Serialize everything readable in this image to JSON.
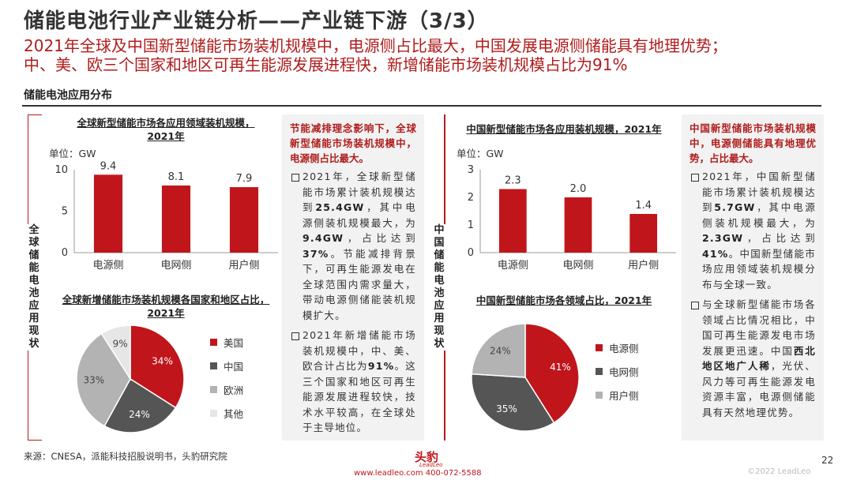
{
  "header": {
    "title": "储能电池行业产业链分析——产业链下游（3/3）",
    "subtitle_line1": "2021年全球及中国新型储能市场装机规模中，电源侧占比最大，中国发展电源侧储能具有地理优势；",
    "subtitle_line2": "中、美、欧三个国家和地区可再生能源发展进程快，新增储能市场装机规模占比为91%"
  },
  "section_title": "储能电池应用分布",
  "global": {
    "side_label": "全球储能电池应用现状",
    "bar_title_line1": "全球新型储能市场各应用领域装机规模，",
    "bar_title_line2": "2021年",
    "pie_title_line1": "全球新增储能市场装机规模各国家和地区占比，",
    "pie_title_line2": "2021年",
    "panel_head": "节能减排理念影响下，全球新型储能市场装机规模中，电源侧占比最大。",
    "bullet1_a": "2021年，全球新型储能市场累计装机规模达到",
    "bullet1_b": "25.4GW",
    "bullet1_c": "，其中电源侧装机规模最大，为",
    "bullet1_d": "9.4GW",
    "bullet1_e": "，占比达到",
    "bullet1_f": "37%",
    "bullet1_g": "。节能减排背景下，可再生能源发电在全球范围内需求量大，带动电源侧储能装机规模扩大。",
    "bullet2_a": "2021年新增储能市场装机规模中，中、美、欧合计占比为",
    "bullet2_b": "91%",
    "bullet2_c": "。这三个国家和地区可再生能源发展进程较快，技术水平较高，在全球处于主导地位。"
  },
  "china": {
    "side_label": "中国储能电池应用现状",
    "bar_title": "中国新型储能市场各应用装机规模，2021年",
    "pie_title": "中国新型储能市场各领域占比，2021年",
    "panel_head": "中国新型储能市场装机规模中，电源侧储能具有地理优势，占比最大。",
    "bullet1_a": "2021年，中国新型储能市场累计装机规模达到",
    "bullet1_b": "5.7GW",
    "bullet1_c": "，其中电源侧装机规模最大，为",
    "bullet1_d": "2.3GW",
    "bullet1_e": "，占比达到",
    "bullet1_f": "41%",
    "bullet1_g": "。中国新型储能市场应用领域装机规模分布与全球一致。",
    "bullet2_a": "与全球新型储能市场各领域占比情况相比，中国可再生能源发电市场发展更迅速。中国",
    "bullet2_b": "西北地区地广人稀",
    "bullet2_c": "，光伏、风力等可再生能源发电资源丰富，电源侧储能具有天然地理优势。"
  },
  "chart_data": [
    {
      "id": "global-bar",
      "type": "bar",
      "title": "全球新型储能市场各应用领域装机规模，2021年",
      "unit_label": "单位：GW",
      "categories": [
        "电源侧",
        "电网侧",
        "用户侧"
      ],
      "values": [
        9.4,
        8.1,
        7.9
      ],
      "value_labels": [
        "9.4",
        "8.1",
        "7.9"
      ],
      "yticks": [
        "0",
        "5",
        "10"
      ],
      "ylim": [
        0,
        10
      ],
      "color": "#c0161b"
    },
    {
      "id": "global-pie",
      "type": "pie",
      "title": "全球新增储能市场装机规模各国家和地区占比，2021年",
      "labels": [
        "美国",
        "中国",
        "欧洲",
        "其他"
      ],
      "values": [
        34,
        24,
        33,
        9
      ],
      "value_labels": [
        "34%",
        "24%",
        "33%",
        "9%"
      ],
      "colors": [
        "#c0161b",
        "#555555",
        "#b3b3b3",
        "#e6e6e6"
      ]
    },
    {
      "id": "china-bar",
      "type": "bar",
      "title": "中国新型储能市场各应用装机规模，2021年",
      "unit_label": "单位：GW",
      "categories": [
        "电源侧",
        "电网侧",
        "用户侧"
      ],
      "values": [
        2.3,
        2.0,
        1.4
      ],
      "value_labels": [
        "2.3",
        "2.0",
        "1.4"
      ],
      "yticks": [
        "0",
        "1",
        "2",
        "3"
      ],
      "ylim": [
        0,
        3
      ],
      "color": "#c0161b"
    },
    {
      "id": "china-pie",
      "type": "pie",
      "title": "中国新型储能市场各领域占比，2021年",
      "labels": [
        "电源侧",
        "电网侧",
        "用户侧"
      ],
      "values": [
        41,
        35,
        24
      ],
      "value_labels": [
        "41%",
        "35%",
        "24%"
      ],
      "colors": [
        "#c0161b",
        "#555555",
        "#b3b3b3"
      ]
    }
  ],
  "footer": {
    "source": "来源：CNESA，派能科技招股说明书，头豹研究院",
    "page_number": "22",
    "copyright": "©2022 LeadLeo",
    "logo_text": "头豹",
    "logo_sub": "LeadLeo",
    "contact": "www.leadleo.com  400-072-5588"
  }
}
